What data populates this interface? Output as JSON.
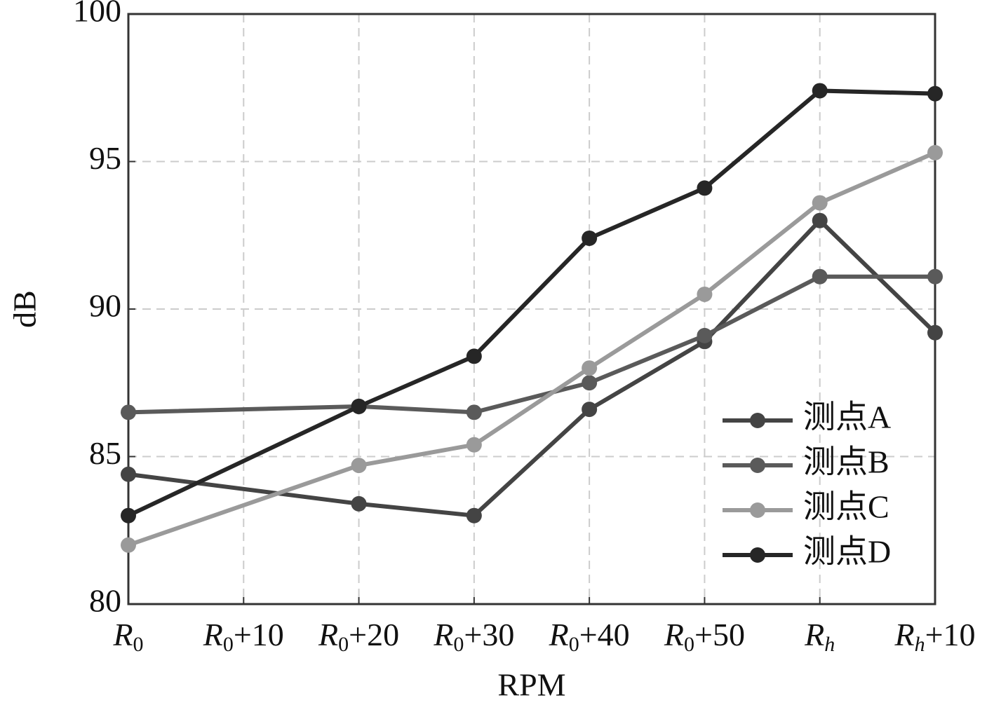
{
  "chart_data": {
    "type": "line",
    "xlabel": "RPM",
    "ylabel": "dB",
    "categories": [
      "R0",
      "R0+10",
      "R0+20",
      "R0+30",
      "R0+40",
      "R0+50",
      "Rh",
      "Rh+10"
    ],
    "series": [
      {
        "name": "测点A",
        "color": "#444444",
        "x": [
          "R0",
          "R0+20",
          "R0+30",
          "R0+40",
          "R0+50",
          "Rh",
          "Rh+10"
        ],
        "values": [
          84.4,
          83.4,
          83.0,
          86.6,
          88.9,
          93.0,
          89.2
        ]
      },
      {
        "name": "测点B",
        "color": "#5a5a5a",
        "x": [
          "R0",
          "R0+20",
          "R0+30",
          "R0+40",
          "R0+50",
          "Rh",
          "Rh+10"
        ],
        "values": [
          86.5,
          86.7,
          86.5,
          87.5,
          89.1,
          91.1,
          91.1
        ]
      },
      {
        "name": "测点C",
        "color": "#9a9a9a",
        "x": [
          "R0",
          "R0+20",
          "R0+30",
          "R0+40",
          "R0+50",
          "Rh",
          "Rh+10"
        ],
        "values": [
          82.0,
          84.7,
          85.4,
          88.0,
          90.5,
          93.6,
          95.3
        ]
      },
      {
        "name": "测点D",
        "color": "#262626",
        "x": [
          "R0",
          "R0+20",
          "R0+30",
          "R0+40",
          "R0+50",
          "Rh",
          "Rh+10"
        ],
        "values": [
          83.0,
          86.7,
          88.4,
          92.4,
          94.1,
          97.4,
          97.3
        ]
      }
    ],
    "ylim": [
      80,
      100
    ],
    "yticks": [
      80,
      85,
      90,
      95,
      100
    ],
    "grid": true,
    "legend": "lower right"
  }
}
